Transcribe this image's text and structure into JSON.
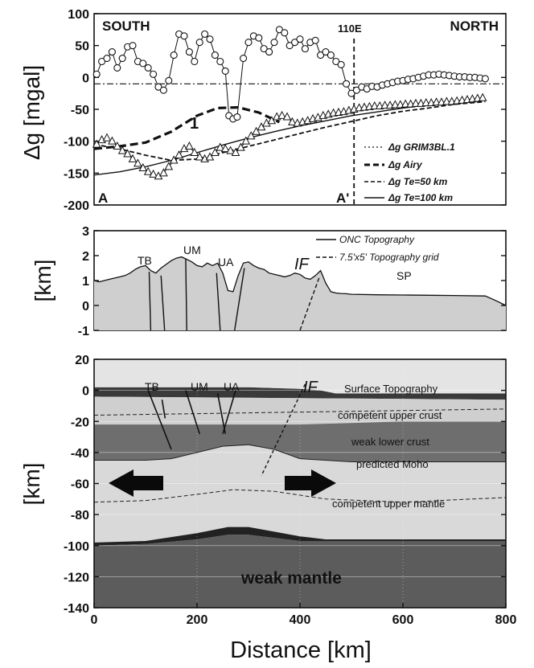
{
  "chart_data": [
    {
      "type": "line",
      "ylabel": "Δg [mgal]",
      "ylim": [
        -200,
        100
      ],
      "xlim": [
        0,
        800
      ],
      "yticks": [
        "100",
        "50",
        "0",
        "-50",
        "-100",
        "-150",
        "-200"
      ],
      "annotations": {
        "south": "SOUTH",
        "north": "NORTH",
        "meridian": "110E",
        "meridian_x": 505,
        "point_a": "A",
        "point_a2": "A'",
        "curve_label": "1"
      },
      "legend_placement": "bottom-right",
      "series": [
        {
          "name": "Δg GRIM3BL.1",
          "style": "dash-dot",
          "x": [
            0,
            800
          ],
          "y": [
            -10,
            -10
          ]
        },
        {
          "name": "Δg Airy",
          "style": "thick-dashed",
          "x": [
            0,
            50,
            100,
            150,
            200,
            240,
            280,
            320,
            360
          ],
          "y": [
            -112,
            -108,
            -102,
            -85,
            -60,
            -48,
            -47,
            -55,
            -70
          ]
        },
        {
          "name": "Δg Te=50 km",
          "style": "dashed",
          "x": [
            0,
            50,
            100,
            150,
            200,
            250,
            300,
            350,
            400,
            450,
            500,
            550,
            600,
            650,
            700,
            760
          ],
          "y": [
            -105,
            -112,
            -122,
            -130,
            -128,
            -118,
            -108,
            -98,
            -88,
            -78,
            -69,
            -60,
            -53,
            -48,
            -42,
            -38
          ]
        },
        {
          "name": "Δg Te=100 km",
          "style": "solid",
          "x": [
            0,
            50,
            100,
            150,
            200,
            250,
            300,
            350,
            400,
            450,
            500,
            550,
            600,
            650,
            700,
            760
          ],
          "y": [
            -153,
            -148,
            -140,
            -130,
            -118,
            -106,
            -95,
            -85,
            -76,
            -68,
            -60,
            -54,
            -48,
            -43,
            -38,
            -35
          ]
        },
        {
          "name": "observed gravity (circles)",
          "style": "markers",
          "x": [
            5,
            15,
            25,
            35,
            45,
            55,
            65,
            75,
            85,
            95,
            105,
            115,
            125,
            135,
            145,
            155,
            165,
            175,
            185,
            195,
            205,
            215,
            225,
            235,
            245,
            255,
            262,
            270,
            278,
            290,
            300,
            310,
            320,
            330,
            340,
            350,
            360,
            370,
            380,
            390,
            400,
            410,
            420,
            430,
            440,
            450,
            460,
            470,
            480,
            490,
            500,
            510,
            520,
            530,
            540,
            550,
            560,
            570,
            580,
            590,
            600,
            610,
            620,
            630,
            640,
            650,
            660,
            670,
            680,
            690,
            700,
            710,
            720,
            730,
            740,
            750,
            760
          ],
          "y": [
            5,
            25,
            30,
            40,
            15,
            30,
            48,
            50,
            25,
            22,
            15,
            5,
            -15,
            -20,
            -5,
            35,
            68,
            65,
            40,
            25,
            55,
            68,
            60,
            35,
            25,
            10,
            -60,
            -65,
            -62,
            30,
            55,
            65,
            62,
            45,
            40,
            55,
            75,
            70,
            50,
            55,
            60,
            45,
            55,
            58,
            35,
            40,
            35,
            25,
            20,
            -10,
            -25,
            -20,
            -15,
            -18,
            -14,
            -15,
            -12,
            -10,
            -8,
            -6,
            -5,
            -3,
            -2,
            0,
            2,
            4,
            4,
            5,
            4,
            3,
            2,
            1,
            1,
            0,
            0,
            -1,
            -2
          ]
        },
        {
          "name": "observed gravity (triangles)",
          "style": "markers",
          "x": [
            5,
            15,
            25,
            35,
            45,
            55,
            65,
            75,
            85,
            95,
            105,
            115,
            125,
            135,
            145,
            155,
            165,
            175,
            185,
            195,
            205,
            215,
            225,
            235,
            245,
            255,
            265,
            275,
            285,
            295,
            305,
            315,
            325,
            335,
            345,
            355,
            365,
            375,
            385,
            395,
            405,
            415,
            425,
            435,
            445,
            455,
            465,
            475,
            485,
            495,
            505,
            515,
            525,
            535,
            545,
            555,
            565,
            575,
            585,
            595,
            605,
            615,
            625,
            635,
            645,
            655,
            665,
            675,
            685,
            695,
            705,
            715,
            725,
            735,
            745,
            755
          ],
          "y": [
            -105,
            -98,
            -95,
            -100,
            -108,
            -115,
            -120,
            -128,
            -135,
            -142,
            -148,
            -152,
            -155,
            -150,
            -140,
            -130,
            -122,
            -112,
            -108,
            -118,
            -125,
            -128,
            -125,
            -118,
            -110,
            -112,
            -115,
            -118,
            -110,
            -100,
            -92,
            -85,
            -78,
            -72,
            -68,
            -62,
            -60,
            -62,
            -70,
            -72,
            -70,
            -68,
            -65,
            -63,
            -60,
            -58,
            -56,
            -55,
            -54,
            -52,
            -50,
            -48,
            -47,
            -46,
            -45,
            -45,
            -44,
            -44,
            -43,
            -43,
            -42,
            -42,
            -41,
            -41,
            -40,
            -40,
            -39,
            -39,
            -38,
            -38,
            -37,
            -36,
            -35,
            -34,
            -33,
            -32
          ]
        }
      ]
    },
    {
      "type": "area",
      "ylabel": "[km]",
      "ylim": [
        -1,
        3
      ],
      "xlim": [
        0,
        800
      ],
      "yticks": [
        "3",
        "2",
        "1",
        "0",
        "-1"
      ],
      "labels": {
        "tb": "TB",
        "um": "UM",
        "ua": "UA",
        "if": "IF",
        "sp": "SP"
      },
      "legend_placement": "top-right",
      "series": [
        {
          "name": "ONC Topography",
          "style": "solid",
          "x": [
            0,
            10,
            20,
            30,
            40,
            50,
            60,
            70,
            80,
            90,
            100,
            110,
            120,
            130,
            140,
            150,
            160,
            170,
            180,
            190,
            200,
            210,
            220,
            230,
            240,
            250,
            260,
            270,
            280,
            290,
            300,
            310,
            320,
            330,
            340,
            350,
            360,
            370,
            380,
            390,
            400,
            410,
            420,
            430,
            440,
            450,
            460,
            470,
            480,
            490,
            500,
            550,
            600,
            650,
            700,
            760,
            780,
            800
          ],
          "y": [
            1.0,
            0.95,
            1.0,
            1.05,
            1.1,
            1.15,
            1.2,
            1.3,
            1.45,
            1.55,
            1.6,
            1.4,
            1.3,
            1.5,
            1.65,
            1.8,
            1.9,
            1.95,
            1.85,
            1.75,
            1.6,
            1.55,
            1.7,
            1.6,
            1.7,
            1.3,
            0.6,
            0.55,
            1.2,
            1.7,
            1.75,
            1.6,
            1.5,
            1.45,
            1.3,
            1.25,
            1.2,
            1.15,
            1.2,
            1.3,
            1.25,
            1.1,
            1.05,
            1.2,
            1.4,
            0.9,
            0.55,
            0.5,
            0.48,
            0.47,
            0.45,
            0.43,
            0.42,
            0.41,
            0.4,
            0.38,
            0.2,
            0.0
          ]
        },
        {
          "name": "7.5'x5' Topography grid",
          "style": "dashed",
          "x": [
            0,
            800
          ],
          "y": [
            0.9,
            0.35
          ]
        }
      ]
    },
    {
      "type": "area",
      "ylabel": "[km]",
      "xlabel": "Distance [km]",
      "ylim": [
        -140,
        20
      ],
      "xlim": [
        0,
        800
      ],
      "xticks": [
        "0",
        "200",
        "400",
        "600",
        "800"
      ],
      "yticks": [
        "20",
        "0",
        "-20",
        "-40",
        "-60",
        "-80",
        "-100",
        "-120",
        "-140"
      ],
      "labels": {
        "tb": "TB",
        "um": "UM",
        "ua": "UA",
        "if": "IF",
        "surface": "Surface Topography",
        "upper_crust": "competent upper crust",
        "lower_crust": "weak lower crust",
        "moho": "predicted Moho",
        "upper_mantle": "competent upper mantle",
        "weak_mantle": "weak mantle"
      },
      "surface": {
        "x": [
          0,
          100,
          200,
          300,
          400,
          440,
          470,
          800
        ],
        "y": [
          2,
          2,
          2,
          2,
          1,
          0,
          -2,
          -2
        ]
      },
      "surface_base": {
        "x": [
          0,
          800
        ],
        "y": [
          -4,
          -6
        ]
      },
      "upper_crust_base": {
        "x": [
          0,
          200,
          300,
          400,
          500,
          600,
          800
        ],
        "y": [
          -22,
          -22,
          -22,
          -22,
          -21,
          -20,
          -20
        ]
      },
      "moho": {
        "x": [
          0,
          100,
          150,
          200,
          250,
          300,
          350,
          400,
          500,
          600,
          800
        ],
        "y": [
          -45,
          -45,
          -44,
          -40,
          -36,
          -35,
          -38,
          -44,
          -46,
          -46,
          -46
        ]
      },
      "dashed_crust": {
        "x": [
          0,
          800
        ],
        "y": [
          -16,
          -12
        ]
      },
      "dashed_mantle": {
        "x": [
          0,
          100,
          200,
          270,
          350,
          450,
          600,
          800
        ],
        "y": [
          -72,
          -71,
          -67,
          -64,
          -65,
          -70,
          -72,
          -69
        ]
      },
      "mantle_top": {
        "x": [
          0,
          100,
          200,
          260,
          300,
          350,
          400,
          450,
          500,
          600,
          700,
          800
        ],
        "y": [
          -98,
          -97,
          -92,
          -88,
          -88,
          -91,
          -94,
          -96,
          -96,
          -96,
          -96,
          -96
        ]
      },
      "mantle_band_bottom": {
        "x": [
          0,
          100,
          200,
          260,
          300,
          350,
          400,
          450,
          500,
          600,
          700,
          800
        ],
        "y": [
          -100,
          -99,
          -96,
          -93,
          -93,
          -95,
          -97,
          -97,
          -97,
          -97,
          -97,
          -97
        ]
      }
    }
  ]
}
